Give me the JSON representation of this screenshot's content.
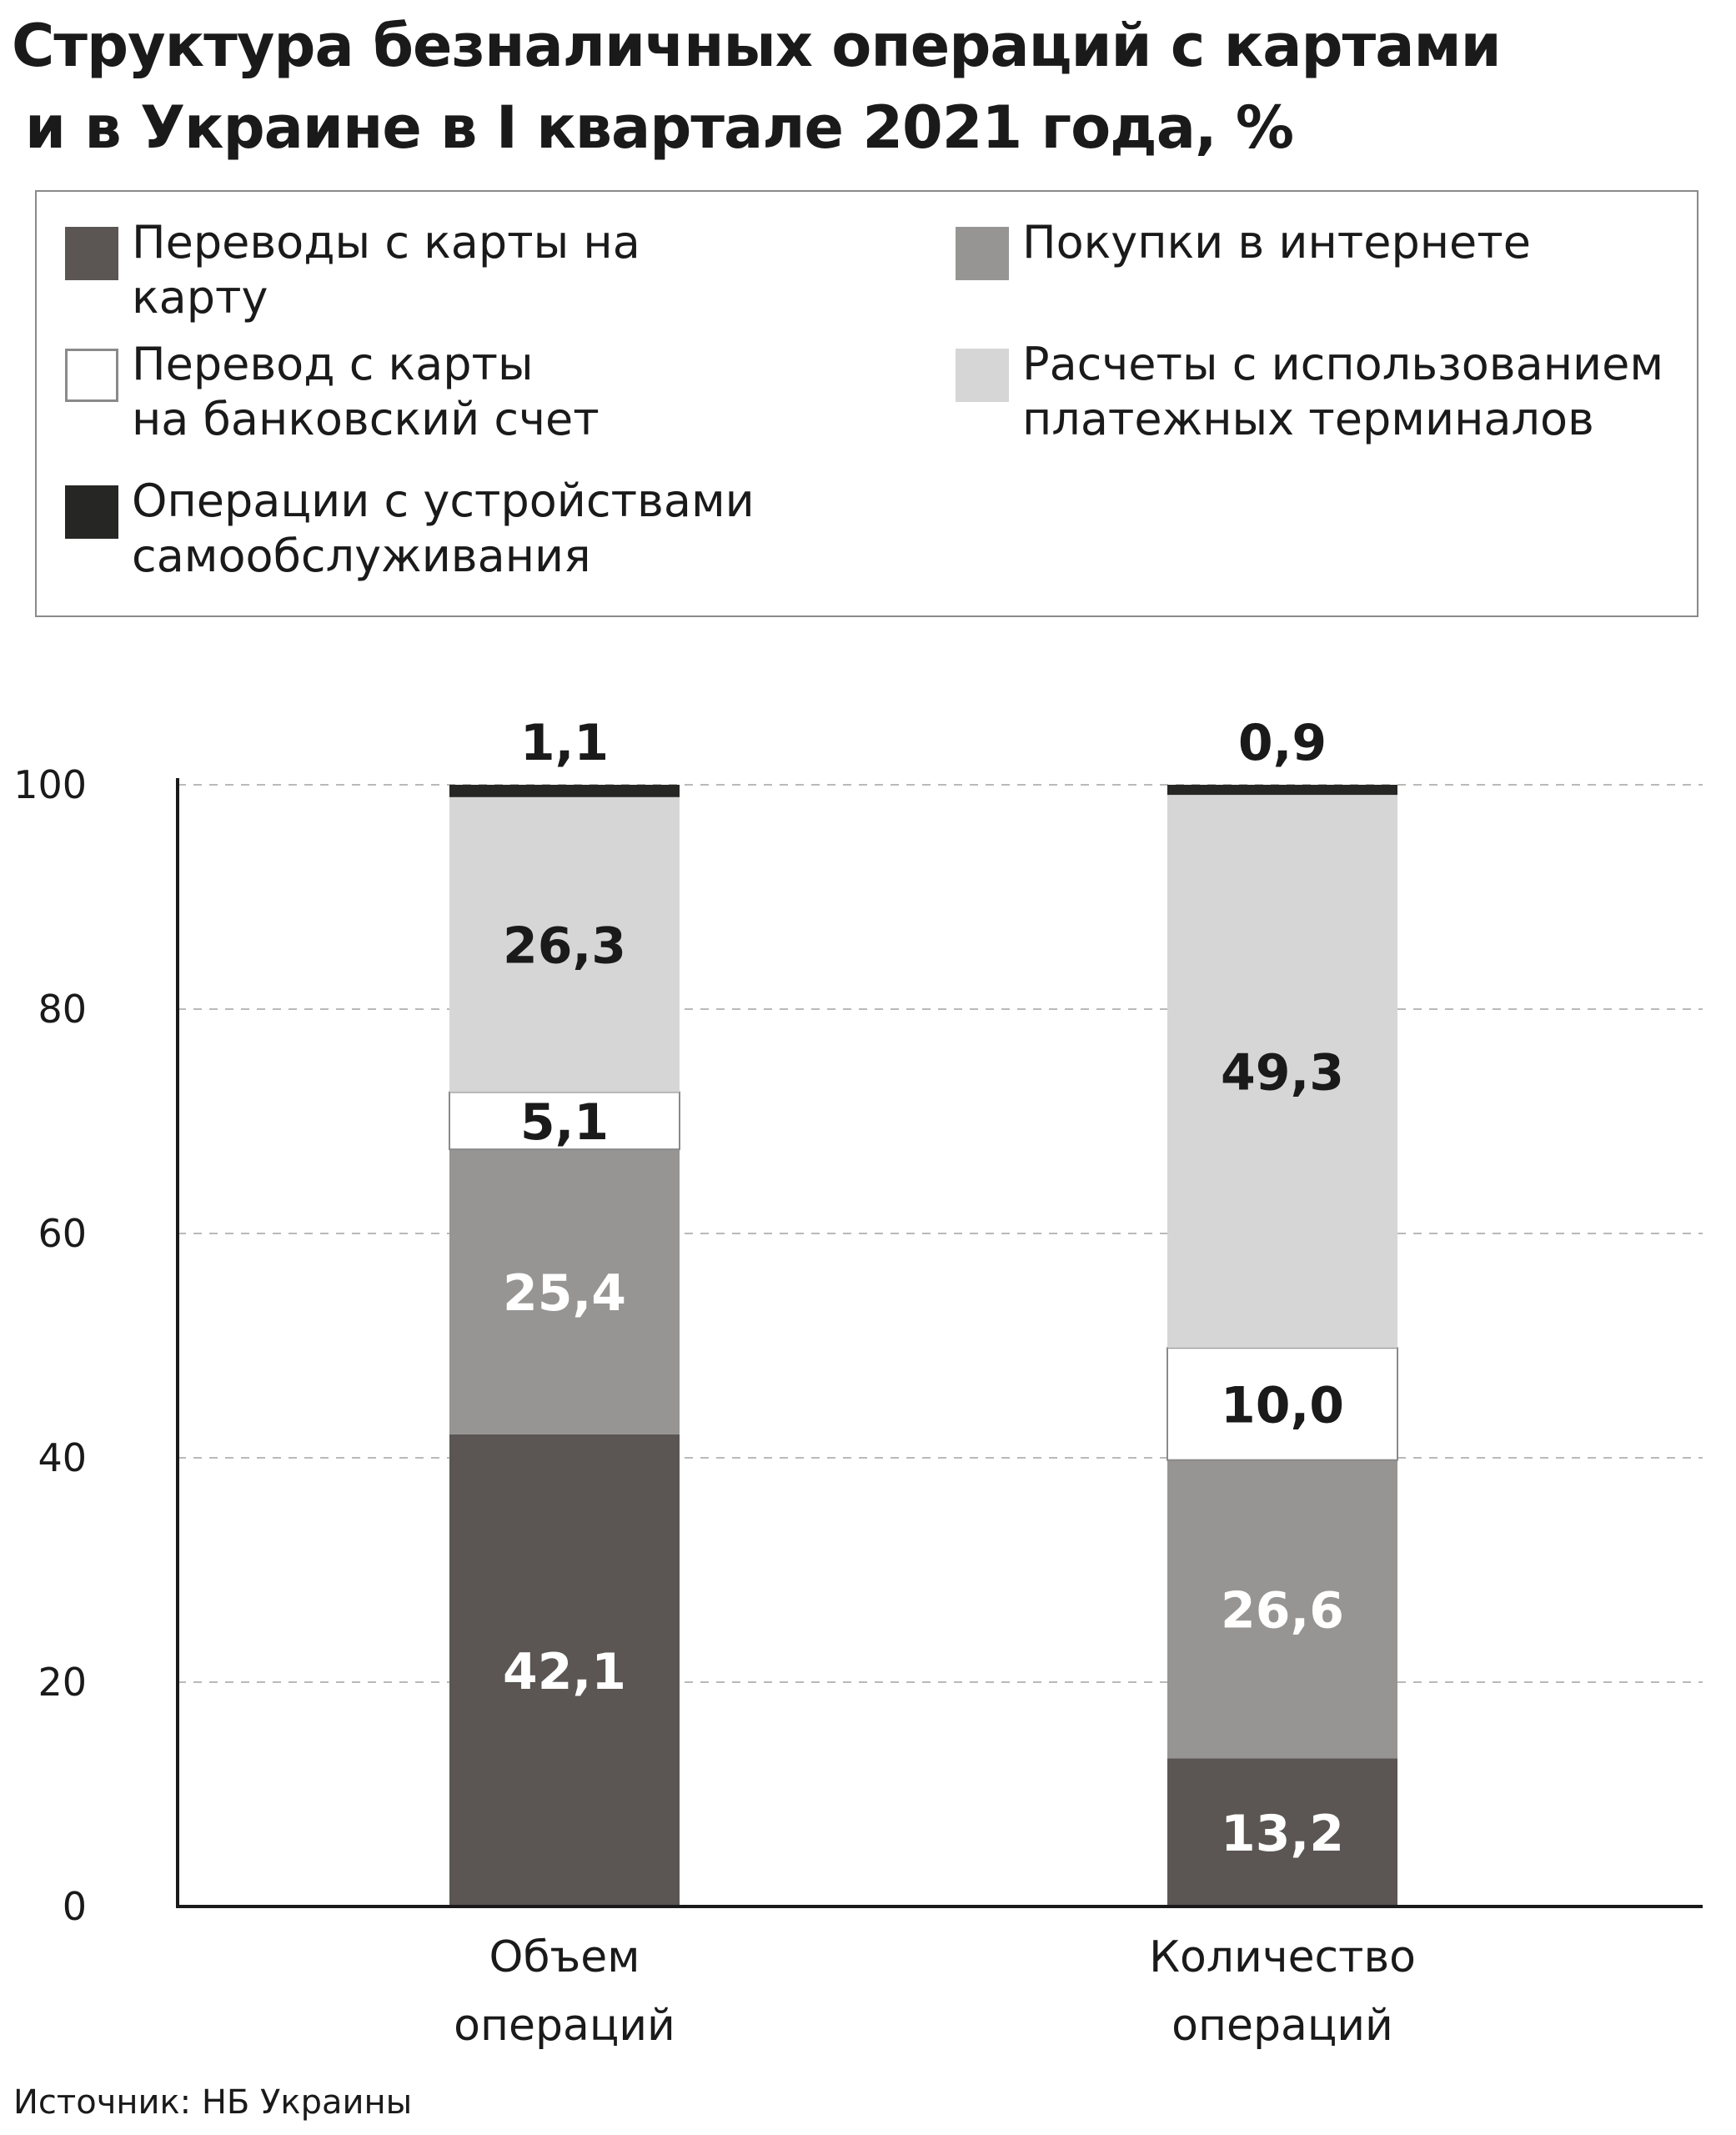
{
  "title_line1": "Структура безналичных операций с картами",
  "title_line2": "и в Украине в I квартале 2021 года, %",
  "source": "Источник: НБ Украины",
  "legend": [
    {
      "label": "Переводы с карты на карту",
      "color": "#5b5653",
      "border": "#5b5653"
    },
    {
      "label": "Покупки в интернете",
      "color": "#979593",
      "border": "#979593"
    },
    {
      "label": "Перевод с карты\nна банковский счет",
      "color": "#ffffff",
      "border": "#8a8a8a"
    },
    {
      "label": "Расчеты с использованием\nплатежных терминалов",
      "color": "#d6d6d6",
      "border": "#d6d6d6"
    },
    {
      "label": "Операции с устройствами\nсамообслуживания",
      "color": "#262624",
      "border": "#262624"
    }
  ],
  "chart_data": {
    "type": "bar",
    "stacked": true,
    "categories": [
      "Объем\nопераций",
      "Количество\nопераций"
    ],
    "series": [
      {
        "name": "Переводы с карты на карту",
        "values": [
          42.1,
          13.2
        ],
        "color": "#5b5653",
        "label_color": "#ffffff",
        "labels": [
          "42,1",
          "13,2"
        ]
      },
      {
        "name": "Покупки в интернете",
        "values": [
          25.4,
          26.6
        ],
        "color": "#979593",
        "label_color": "#ffffff",
        "labels": [
          "25,4",
          "26,6"
        ]
      },
      {
        "name": "Перевод с карты на банковский счет",
        "values": [
          5.1,
          10.0
        ],
        "color": "#ffffff",
        "label_color": "#1a1a1a",
        "labels": [
          "5,1",
          "10,0"
        ]
      },
      {
        "name": "Расчеты с использованием платежных терминалов",
        "values": [
          26.3,
          49.3
        ],
        "color": "#d6d6d6",
        "label_color": "#1a1a1a",
        "labels": [
          "26,3",
          "49,3"
        ]
      },
      {
        "name": "Операции с устройствами самообслуживания",
        "values": [
          1.1,
          0.9
        ],
        "color": "#262624",
        "label_color": "#1a1a1a",
        "labels": [
          "1,1",
          "0,9"
        ],
        "label_above": true
      }
    ],
    "ylim": [
      0,
      100
    ],
    "yticks": [
      0,
      20,
      40,
      60,
      80,
      100
    ],
    "ytick_labels": [
      "0",
      "20",
      "40",
      "60",
      "80",
      "100"
    ],
    "grid": true,
    "legend_position": "top"
  }
}
